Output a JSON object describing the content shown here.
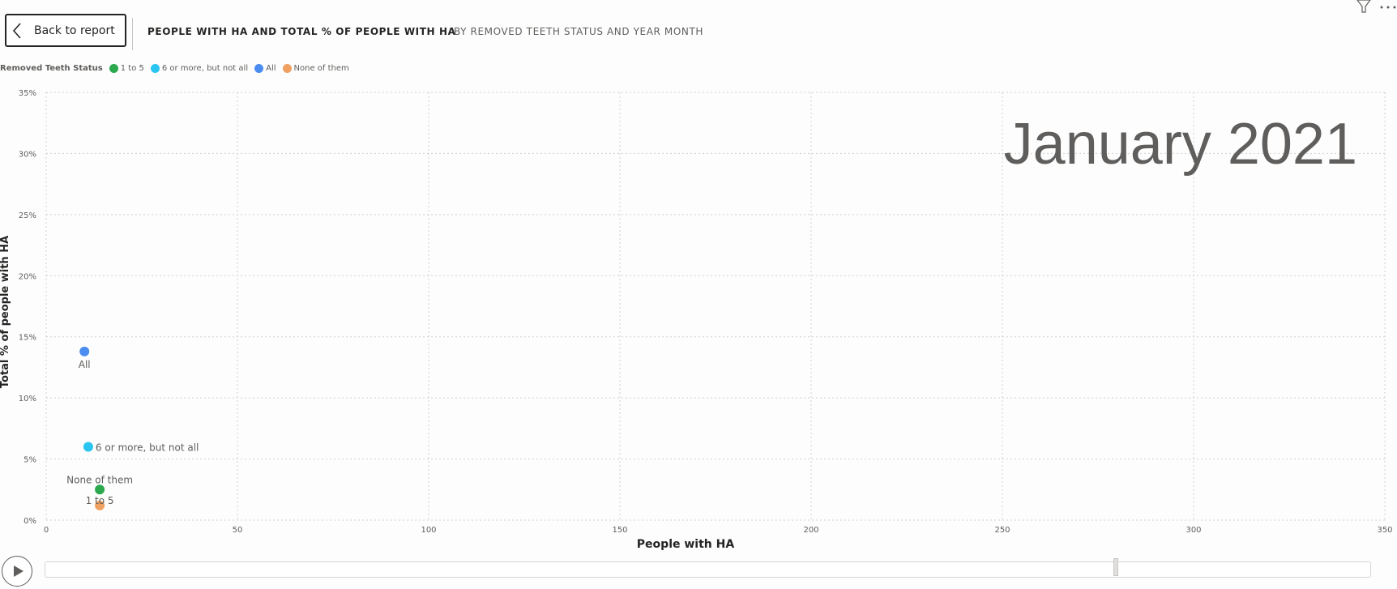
{
  "header": {
    "back_label": "Back to report",
    "title": "PEOPLE WITH HA AND TOTAL % OF PEOPLE WITH HA",
    "subtitle": "BY REMOVED TEETH STATUS AND YEAR MONTH"
  },
  "legend": {
    "title": "Removed Teeth Status",
    "items": [
      {
        "label": "1 to 5",
        "color": "#2ca84e"
      },
      {
        "label": "6 or more, but not all",
        "color": "#29c5f0"
      },
      {
        "label": "All",
        "color": "#4a8cf0"
      },
      {
        "label": "None of them",
        "color": "#f0a060"
      }
    ]
  },
  "chart_data": {
    "type": "scatter",
    "title": "",
    "xlabel": "People with HA",
    "ylabel": "Total % of people with HA",
    "xlim": [
      0,
      350
    ],
    "ylim": [
      0,
      35
    ],
    "x_ticks": [
      "0",
      "50",
      "100",
      "150",
      "200",
      "250",
      "300",
      "350"
    ],
    "y_ticks": [
      "0%",
      "5%",
      "10%",
      "15%",
      "20%",
      "25%",
      "30%",
      "35%"
    ],
    "play_axis_label": "January 2021",
    "grid": true,
    "legend_position": "top-left",
    "series": [
      {
        "name": "1 to 5",
        "color": "#2ca84e",
        "x": 14,
        "y": 2.5,
        "label": "1 to 5"
      },
      {
        "name": "6 or more, but not all",
        "color": "#29c5f0",
        "x": 11,
        "y": 6.0,
        "label": "6 or more, but not all"
      },
      {
        "name": "All",
        "color": "#4a8cf0",
        "x": 10,
        "y": 13.8,
        "label": "All"
      },
      {
        "name": "None of them",
        "color": "#f0a060",
        "x": 14,
        "y": 1.2,
        "label": "None of them"
      }
    ]
  }
}
